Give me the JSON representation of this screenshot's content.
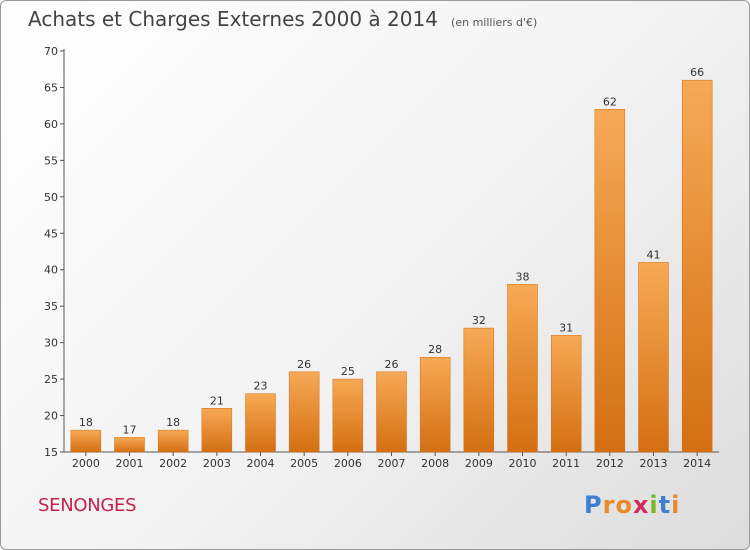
{
  "chart_data": {
    "type": "bar",
    "title": "Achats et Charges Externes 2000 à 2014",
    "subtitle": "(en milliers d'€)",
    "categories": [
      "2000",
      "2001",
      "2002",
      "2003",
      "2004",
      "2005",
      "2006",
      "2007",
      "2008",
      "2009",
      "2010",
      "2011",
      "2012",
      "2013",
      "2014"
    ],
    "values": [
      18,
      17,
      18,
      21,
      23,
      26,
      25,
      26,
      28,
      32,
      38,
      31,
      62,
      41,
      66
    ],
    "ylim": [
      15,
      70
    ],
    "yticks": [
      15,
      20,
      25,
      30,
      35,
      40,
      45,
      50,
      55,
      60,
      65,
      70
    ],
    "grid": false,
    "bar_color": "#e8892c",
    "bar_color_light": "#f7a955",
    "bar_color_dark": "#d46f12"
  },
  "place_name": "SENONGES",
  "brand": {
    "letters": [
      "P",
      "r",
      "o",
      "x",
      "i",
      "t",
      "i"
    ],
    "colors": [
      "#3d7fd1",
      "#e8892c",
      "#e8892c",
      "#d12d5a",
      "#76b82a",
      "#3d7fd1",
      "#e8892c"
    ]
  }
}
